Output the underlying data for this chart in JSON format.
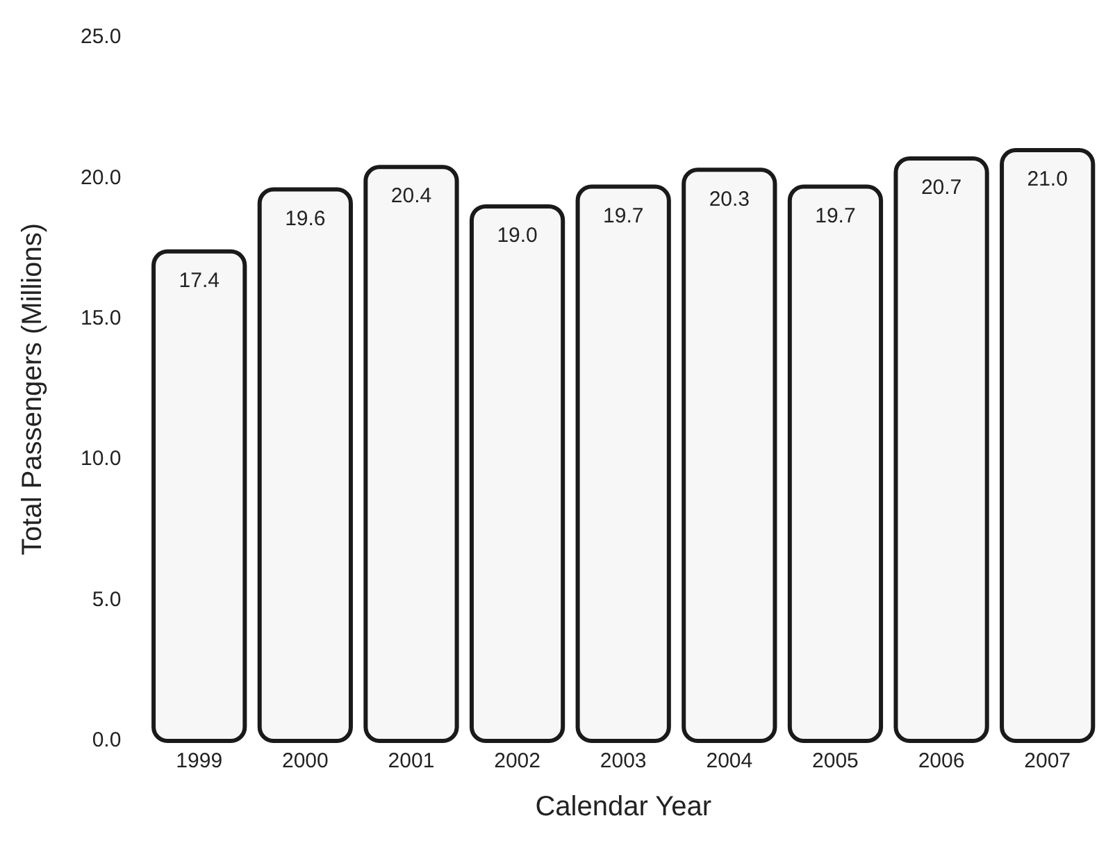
{
  "chart_data": {
    "type": "bar",
    "xlabel": "Calendar Year",
    "ylabel": "Total Passengers (Millions)",
    "categories": [
      "1999",
      "2000",
      "2001",
      "2002",
      "2003",
      "2004",
      "2005",
      "2006",
      "2007"
    ],
    "values": [
      17.4,
      19.6,
      20.4,
      19.0,
      19.7,
      20.3,
      19.7,
      20.7,
      21.0
    ],
    "value_labels": [
      "17.4",
      "19.6",
      "20.4",
      "19.0",
      "19.7",
      "20.3",
      "19.7",
      "20.7",
      "21.0"
    ],
    "color": "#f7f7f7",
    "ylim": [
      0,
      25
    ],
    "yticks": [
      {
        "value": 0,
        "label": "0.0"
      },
      {
        "value": 5,
        "label": "5.0"
      },
      {
        "value": 10,
        "label": "10.0"
      },
      {
        "value": 15,
        "label": "15.0"
      },
      {
        "value": 20,
        "label": "20.0"
      },
      {
        "value": 25,
        "label": "25.0"
      }
    ],
    "grid": false,
    "legend": false
  }
}
